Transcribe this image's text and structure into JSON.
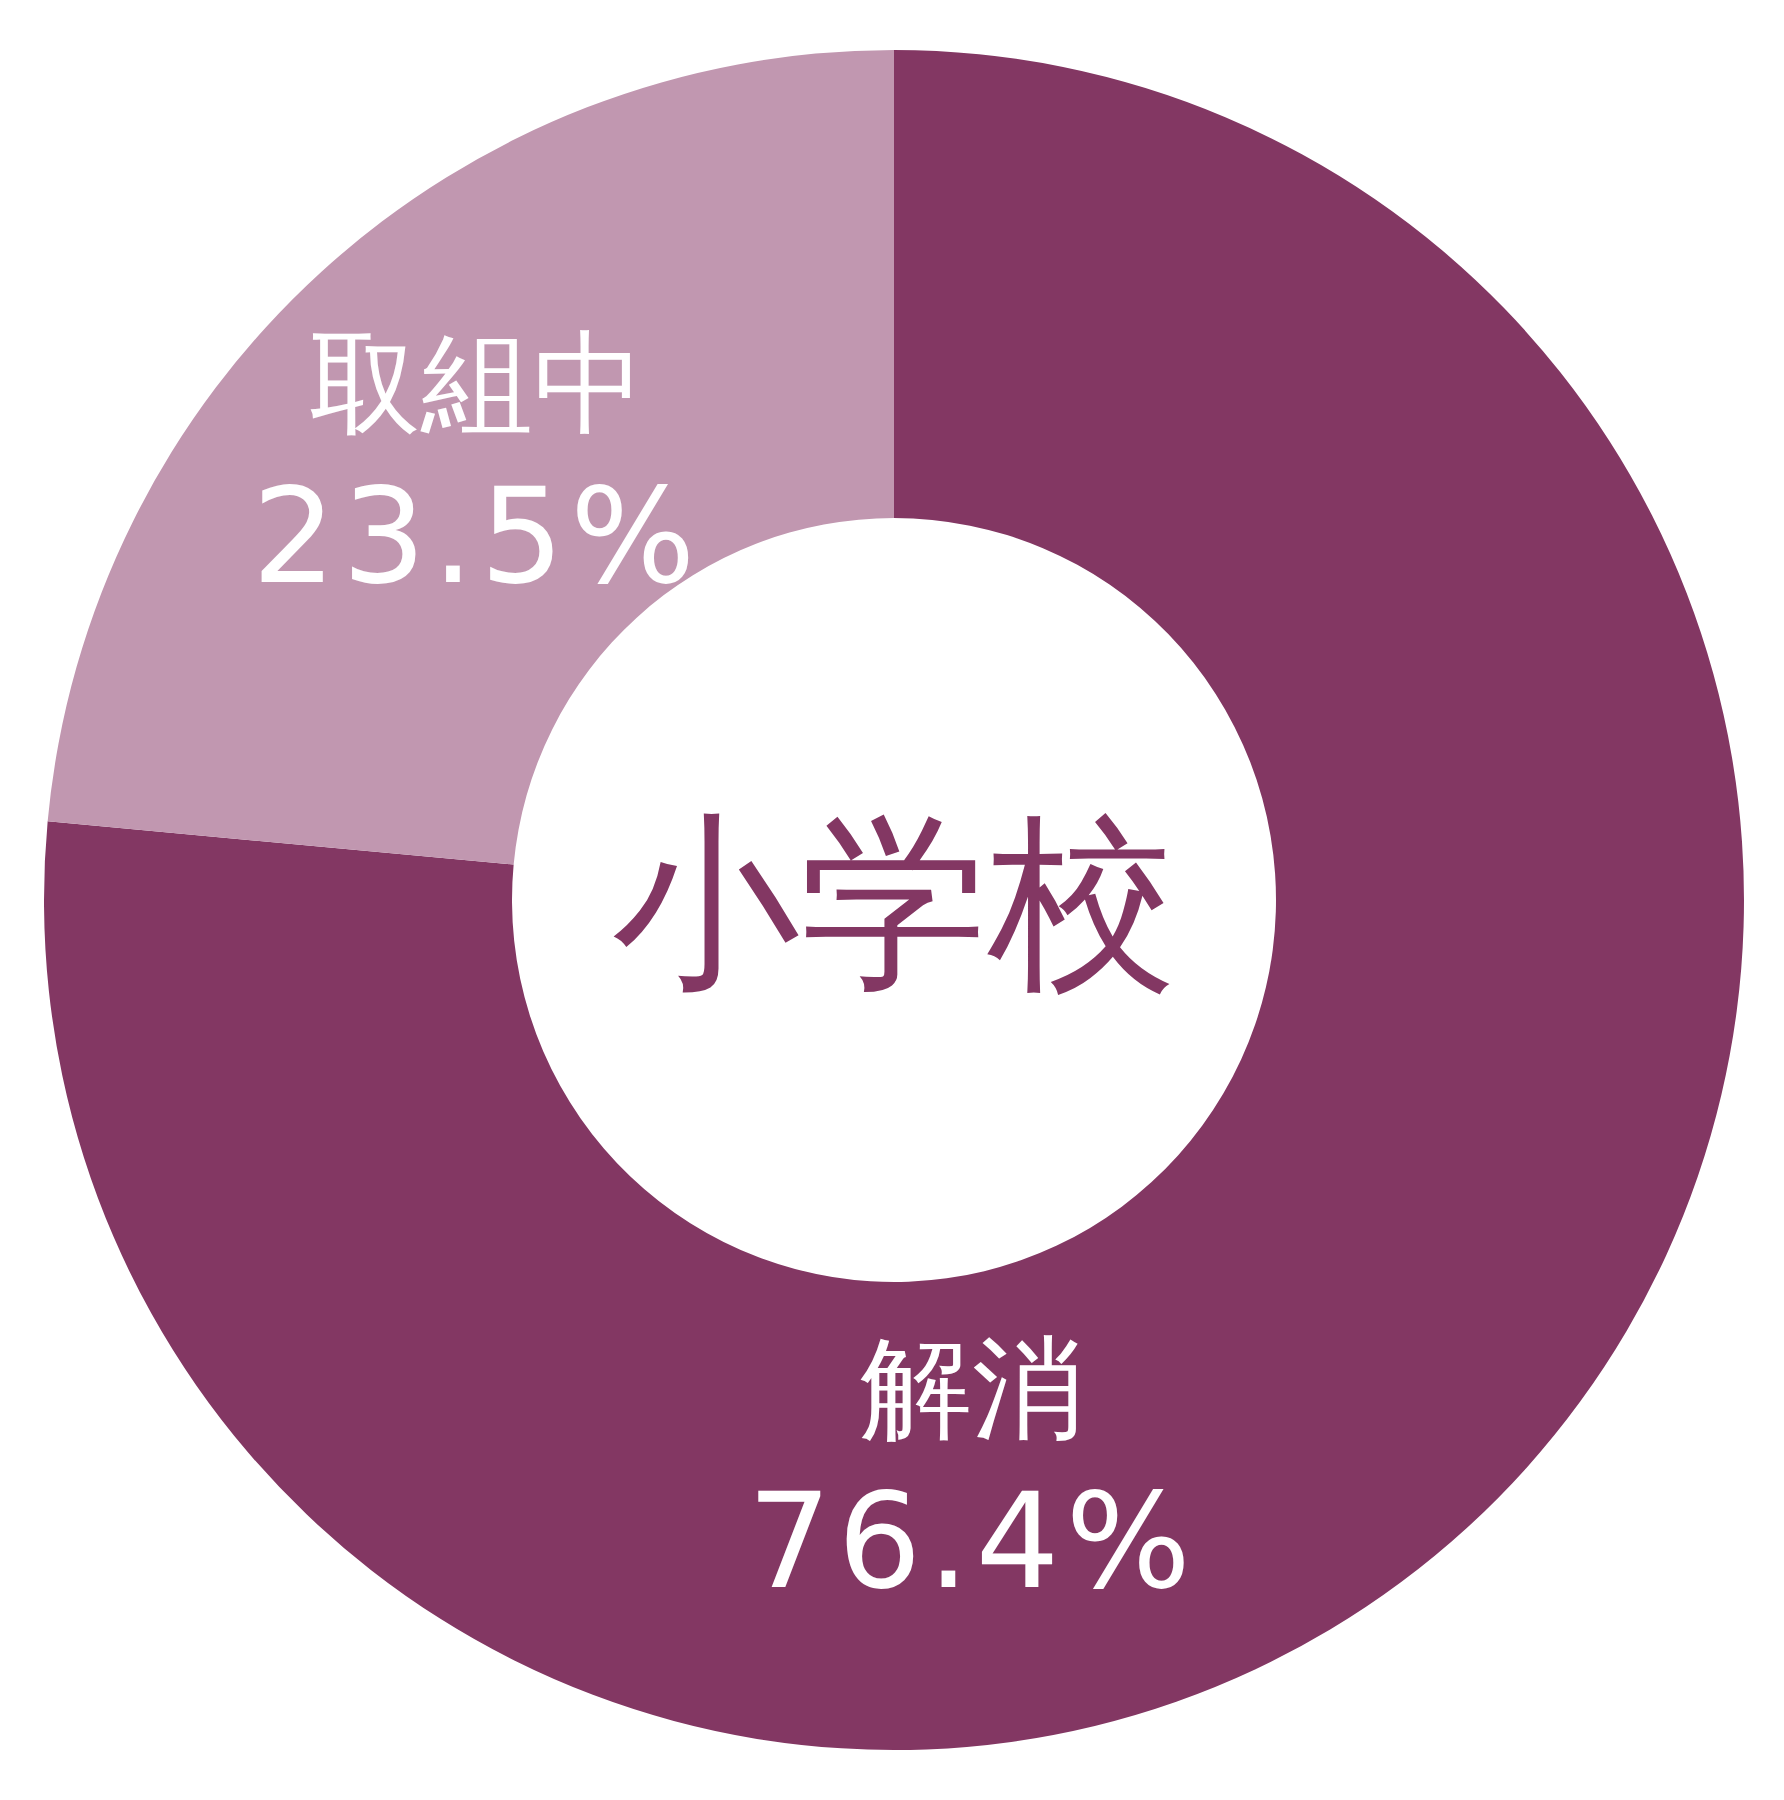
{
  "chart_data": {
    "type": "donut",
    "title": "小学校",
    "categories": [
      "解消",
      "取組中"
    ],
    "values": [
      76.4,
      23.5
    ],
    "colors": [
      "#833763",
      "#c197b0"
    ],
    "value_labels": [
      "76.4%",
      "23.5%"
    ]
  }
}
